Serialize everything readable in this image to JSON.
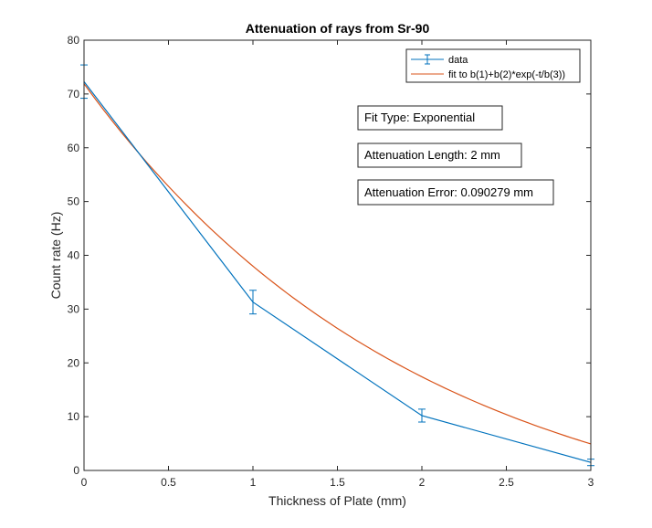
{
  "chart_data": {
    "type": "line",
    "title": "Attenuation of rays from Sr-90",
    "xlabel": "Thickness of Plate (mm)",
    "ylabel": "Count rate (Hz)",
    "xlim": [
      0,
      3
    ],
    "ylim": [
      0,
      80
    ],
    "xticks": [
      0,
      0.5,
      1,
      1.5,
      2,
      2.5,
      3
    ],
    "xtick_labels": [
      "0",
      "0.5",
      "1",
      "1.5",
      "2",
      "2.5",
      "3"
    ],
    "yticks": [
      0,
      10,
      20,
      30,
      40,
      50,
      60,
      70,
      80
    ],
    "ytick_labels": [
      "0",
      "10",
      "20",
      "30",
      "40",
      "50",
      "60",
      "70",
      "80"
    ],
    "grid": false,
    "legend_position": "top-right",
    "series": [
      {
        "name": "data",
        "style": "errorbar",
        "color": "#0072BD",
        "x": [
          0,
          1,
          2,
          3
        ],
        "y": [
          72.3,
          31.3,
          10.2,
          1.5
        ],
        "err": [
          3.1,
          2.2,
          1.2,
          0.6
        ]
      },
      {
        "name": "fit to b(1)+b(2)*exp(-t/b(3))",
        "style": "fit",
        "color": "#D95319",
        "model": {
          "b1": -14.3,
          "b2": 86.2,
          "b3": 2
        },
        "x_range": [
          0,
          3
        ]
      }
    ],
    "annotations": [
      "Fit Type: Exponential",
      "Attenuation Length: 2 mm",
      "Attenuation Error: 0.090279 mm"
    ]
  }
}
